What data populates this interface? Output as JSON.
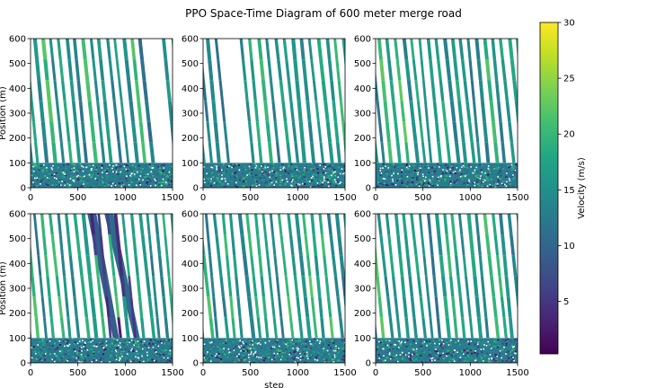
{
  "figure": {
    "title": "PPO Space-Time Diagram of 600 meter merge road",
    "colorbar": {
      "label": "Velocity (m/s)",
      "range": [
        0.3,
        30
      ],
      "ticks": [
        5,
        10,
        15,
        20,
        25,
        30
      ],
      "colormap": "viridis"
    }
  },
  "chart_data": [
    {
      "type": "scatter",
      "panel": "top-left",
      "xlabel": "",
      "ylabel": "Position (m)",
      "xlim": [
        0,
        1500
      ],
      "ylim": [
        0,
        600
      ],
      "xticks": [
        0,
        500,
        1000,
        1500
      ],
      "yticks": [
        0,
        100,
        200,
        300,
        400,
        500,
        600
      ],
      "traffic": {
        "num_trajectories": 21,
        "merge_zone_top_m": 100,
        "gap_region": {
          "x": [
            1210,
            1430
          ],
          "y": [
            100,
            600
          ]
        },
        "jam_bands": []
      }
    },
    {
      "type": "scatter",
      "panel": "top-center",
      "xlabel": "",
      "ylabel": "",
      "xlim": [
        0,
        1500
      ],
      "ylim": [
        0,
        600
      ],
      "xticks": [
        0,
        500,
        1000,
        1500
      ],
      "yticks": [
        0,
        100,
        200,
        300,
        400,
        500,
        600
      ],
      "traffic": {
        "num_trajectories": 20,
        "merge_zone_top_m": 100,
        "gap_region": {
          "x": [
            220,
            420
          ],
          "y": [
            100,
            600
          ]
        },
        "jam_bands": []
      }
    },
    {
      "type": "scatter",
      "panel": "top-right",
      "xlabel": "",
      "ylabel": "",
      "xlim": [
        0,
        1500
      ],
      "ylim": [
        0,
        600
      ],
      "xticks": [
        0,
        500,
        1000,
        1500
      ],
      "yticks": [
        0,
        100,
        200,
        300,
        400,
        500,
        600
      ],
      "traffic": {
        "num_trajectories": 21,
        "merge_zone_top_m": 100,
        "gap_region": null,
        "jam_bands": []
      }
    },
    {
      "type": "scatter",
      "panel": "bottom-left",
      "xlabel": "",
      "ylabel": "Position (m)",
      "xlim": [
        0,
        1500
      ],
      "ylim": [
        0,
        600
      ],
      "xticks": [
        0,
        500,
        1000,
        1500
      ],
      "yticks": [
        0,
        100,
        200,
        300,
        400,
        500,
        600
      ],
      "traffic": {
        "num_trajectories": 21,
        "merge_zone_top_m": 100,
        "gap_region": null,
        "jam_bands": [
          {
            "x_at_600": 640,
            "x_at_100": 900
          },
          {
            "x_at_600": 820,
            "x_at_100": 1120
          }
        ]
      }
    },
    {
      "type": "scatter",
      "panel": "bottom-center",
      "xlabel": "step",
      "ylabel": "",
      "xlim": [
        0,
        1500
      ],
      "ylim": [
        0,
        600
      ],
      "xticks": [
        0,
        500,
        1000,
        1500
      ],
      "yticks": [
        0,
        100,
        200,
        300,
        400,
        500,
        600
      ],
      "traffic": {
        "num_trajectories": 21,
        "merge_zone_top_m": 100,
        "gap_region": null,
        "jam_bands": []
      }
    },
    {
      "type": "scatter",
      "panel": "bottom-right",
      "xlabel": "",
      "ylabel": "",
      "xlim": [
        0,
        1500
      ],
      "ylim": [
        0,
        600
      ],
      "xticks": [
        0,
        500,
        1000,
        1500
      ],
      "yticks": [
        0,
        100,
        200,
        300,
        400,
        500,
        600
      ],
      "traffic": {
        "num_trajectories": 21,
        "merge_zone_top_m": 100,
        "gap_region": null,
        "jam_bands": []
      }
    }
  ]
}
